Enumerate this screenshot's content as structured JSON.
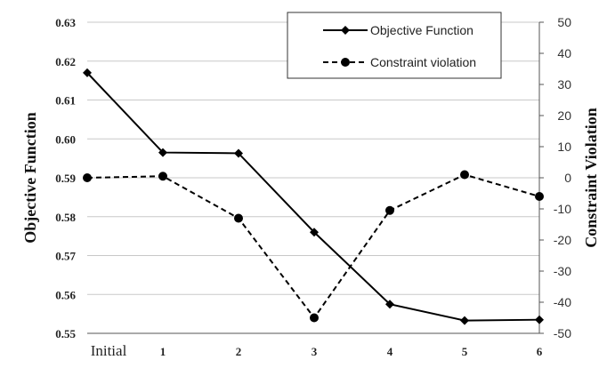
{
  "chart_data": {
    "type": "line",
    "categories": [
      "Initial",
      "1",
      "2",
      "3",
      "4",
      "5",
      "6"
    ],
    "series": [
      {
        "name": "Objective Function",
        "axis": "left",
        "line_style": "solid",
        "marker": "diamond",
        "color": "#000000",
        "values": [
          0.617,
          0.5965,
          0.5963,
          0.576,
          0.5575,
          0.5533,
          0.5535
        ]
      },
      {
        "name": "Constraint violation",
        "axis": "right",
        "line_style": "dashed",
        "marker": "circle",
        "color": "#000000",
        "values": [
          0,
          0.5,
          -13,
          -45,
          -10.5,
          1,
          -6
        ]
      }
    ],
    "ylabel": "Objective Function",
    "y2label": "Constraint Violation",
    "ylim": [
      0.55,
      0.63
    ],
    "y2lim": [
      -50,
      50
    ],
    "yticks": [
      "0.55",
      "0.56",
      "0.57",
      "0.58",
      "0.59",
      "0.60",
      "0.61",
      "0.62",
      "0.63"
    ],
    "y2ticks": [
      "-50",
      "-40",
      "-30",
      "-20",
      "-10",
      "0",
      "10",
      "20",
      "30",
      "40",
      "50"
    ],
    "grid": "horizontal",
    "legend_position": "top-right"
  }
}
